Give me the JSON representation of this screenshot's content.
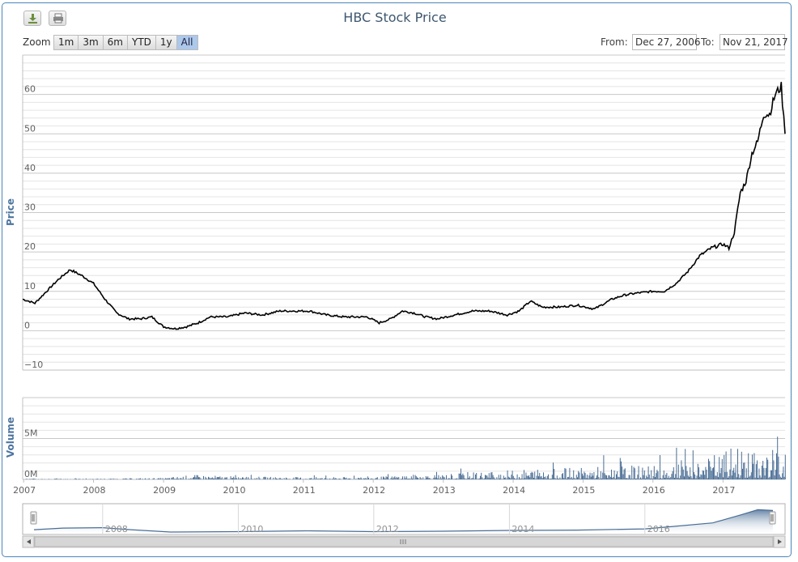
{
  "toolbar": {
    "download_icon": "download-icon",
    "print_icon": "print-icon"
  },
  "zoom": {
    "label": "Zoom",
    "buttons": [
      "1m",
      "3m",
      "6m",
      "YTD",
      "1y",
      "All"
    ],
    "active": "All"
  },
  "range": {
    "from_label": "From:",
    "from_value": "Dec 27, 2006",
    "to_label": "To:",
    "to_value": "Nov 21, 2017"
  },
  "colors": {
    "price_line": "#000000",
    "volume_bars": "#4a6e96",
    "navigator_line": "#4a6e96",
    "navigator_fill_top": "#4a6e96",
    "grid": "#d0d0d0",
    "title": "#3e576f",
    "frame_border": "#4b86b8",
    "zoom_active": "#acc8ea"
  },
  "chart_data": [
    {
      "type": "line",
      "title": "HBC Stock Price",
      "xlabel": "",
      "ylabel": "Price",
      "ylim": [
        -10,
        70
      ],
      "y_ticks": [
        -10,
        0,
        10,
        20,
        30,
        40,
        50,
        60
      ],
      "grid": true,
      "x_ticks": [
        "2007",
        "2008",
        "2009",
        "2010",
        "2011",
        "2012",
        "2013",
        "2014",
        "2015",
        "2016",
        "2017"
      ],
      "x_range": [
        "2006-12-27",
        "2017-11-21"
      ],
      "series": [
        {
          "x": [
            "2006-12-27",
            "2007-03-01",
            "2007-05-01",
            "2007-07-01",
            "2007-09-01",
            "2007-11-01",
            "2008-01-01",
            "2008-03-01",
            "2008-05-01",
            "2008-07-01",
            "2008-09-01",
            "2008-11-01",
            "2009-01-01",
            "2009-03-01",
            "2009-05-01",
            "2009-07-01",
            "2009-09-01",
            "2009-12-01",
            "2010-03-01",
            "2010-06-01",
            "2010-09-01",
            "2010-12-01",
            "2011-02-01",
            "2011-05-01",
            "2011-08-01",
            "2011-10-01",
            "2011-12-01",
            "2012-02-01",
            "2012-04-01",
            "2012-06-01",
            "2012-08-01",
            "2012-10-01",
            "2012-12-01",
            "2013-03-01",
            "2013-06-01",
            "2013-09-01",
            "2013-12-01",
            "2014-02-01",
            "2014-04-01",
            "2014-06-01",
            "2014-09-01",
            "2014-12-01",
            "2015-03-01",
            "2015-06-01",
            "2015-08-01",
            "2015-10-01",
            "2016-01-01",
            "2016-03-01",
            "2016-05-01",
            "2016-07-01",
            "2016-09-01",
            "2016-11-01",
            "2017-01-01",
            "2017-02-01",
            "2017-03-01",
            "2017-04-01",
            "2017-05-01",
            "2017-06-01",
            "2017-07-01",
            "2017-08-01",
            "2017-09-01",
            "2017-10-01",
            "2017-11-01",
            "2017-11-21"
          ],
          "values": [
            8,
            7,
            10,
            13,
            15.5,
            14,
            12,
            8,
            4.5,
            3,
            3,
            3.5,
            1,
            0.5,
            1,
            2,
            3.5,
            3.5,
            4.5,
            4,
            5,
            5,
            5,
            4,
            3.5,
            3.5,
            3.5,
            2,
            3,
            5,
            4.5,
            3.5,
            3,
            4,
            5,
            5,
            4,
            5,
            7.5,
            6,
            6,
            6.5,
            5.5,
            8,
            9,
            9.5,
            10,
            10,
            12,
            15,
            19,
            21,
            22,
            21,
            25,
            35,
            38,
            45,
            48,
            55,
            55,
            60,
            62,
            50
          ]
        }
      ]
    },
    {
      "type": "bar",
      "title": "",
      "xlabel": "",
      "ylabel": "Volume",
      "ylim": [
        0,
        10
      ],
      "y_unit": "M",
      "y_ticks": [
        0,
        5
      ],
      "y_tick_labels": [
        "0M",
        "5M"
      ],
      "grid": true,
      "series": [
        {
          "x": [
            "2007",
            "2008",
            "2009",
            "2009-06",
            "2010",
            "2011",
            "2012",
            "2012-06",
            "2013",
            "2013-06",
            "2014",
            "2014-06",
            "2015",
            "2015-06",
            "2016",
            "2016-06",
            "2017",
            "2017-03",
            "2017-06",
            "2017-09",
            "2017-11"
          ],
          "values": [
            0.1,
            0.1,
            0.2,
            0.6,
            0.4,
            0.3,
            0.3,
            0.6,
            0.7,
            1.0,
            1.2,
            1.5,
            1.5,
            1.8,
            1.8,
            2.5,
            3.5,
            4.5,
            3.5,
            4.0,
            4.0
          ]
        }
      ]
    },
    {
      "type": "area",
      "title": "",
      "x_ticks": [
        "2008",
        "2010",
        "2012",
        "2014",
        "2016"
      ],
      "series": [
        {
          "x": [
            "2006-12-27",
            "2007-06-01",
            "2008-01-01",
            "2008-06-01",
            "2009-01-01",
            "2010-01-01",
            "2011-01-01",
            "2012-01-01",
            "2013-01-01",
            "2014-01-01",
            "2015-01-01",
            "2016-01-01",
            "2016-06-01",
            "2017-01-01",
            "2017-06-01",
            "2017-09-01",
            "2017-11-21"
          ],
          "values": [
            8,
            12,
            13,
            8,
            2,
            3,
            5,
            3,
            4,
            6,
            7,
            10,
            16,
            25,
            45,
            58,
            56
          ]
        }
      ]
    }
  ]
}
